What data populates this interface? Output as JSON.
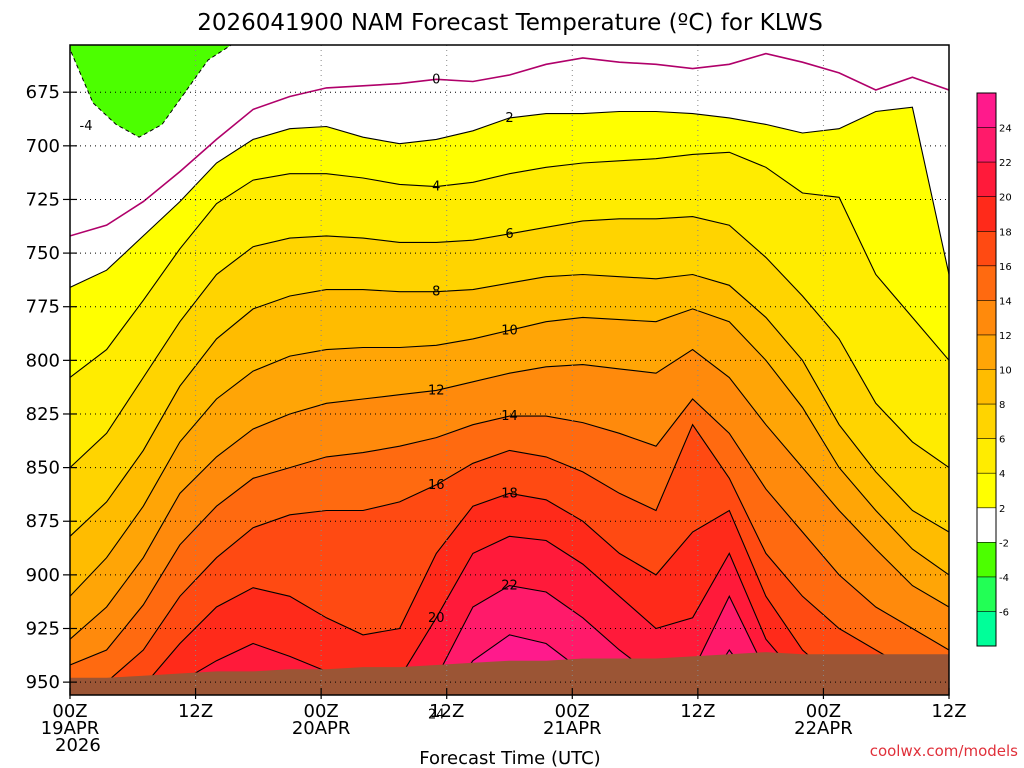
{
  "colors": {
    "ground": "#9b5535",
    "freezing_line": "#b0006a",
    "contour": "#000000",
    "fill_levels": [
      {
        "min": 24,
        "color": "#ff1a8c"
      },
      {
        "min": 22,
        "color": "#ff1a6a"
      },
      {
        "min": 20,
        "color": "#ff1a3a"
      },
      {
        "min": 18,
        "color": "#ff2a1a"
      },
      {
        "min": 16,
        "color": "#ff4a12"
      },
      {
        "min": 14,
        "color": "#ff6a10"
      },
      {
        "min": 12,
        "color": "#ff8a0c"
      },
      {
        "min": 10,
        "color": "#ffa506"
      },
      {
        "min": 8,
        "color": "#ffbc00"
      },
      {
        "min": 6,
        "color": "#ffd400"
      },
      {
        "min": 4,
        "color": "#ffec00"
      },
      {
        "min": 2,
        "color": "#ffff00"
      },
      {
        "min": -2,
        "color": "#ffffff"
      },
      {
        "min": -4,
        "color": "#4cff00"
      },
      {
        "min": -6,
        "color": "#22ff55"
      },
      {
        "min": -99,
        "color": "#00ff99"
      }
    ]
  },
  "chart_data": {
    "type": "heatmap",
    "title": "2026041900 NAM Forecast Temperature (ºC) for KLWS",
    "xlabel": "Forecast Time (UTC)",
    "ylabel": "",
    "credit": "coolwx.com/models",
    "x_ticks": [
      {
        "hour": 0,
        "lines": [
          "00Z",
          "19APR",
          "2026"
        ]
      },
      {
        "hour": 12,
        "lines": [
          "12Z"
        ]
      },
      {
        "hour": 24,
        "lines": [
          "00Z",
          "20APR"
        ]
      },
      {
        "hour": 36,
        "lines": [
          "12Z"
        ]
      },
      {
        "hour": 48,
        "lines": [
          "00Z",
          "21APR"
        ]
      },
      {
        "hour": 60,
        "lines": [
          "12Z"
        ]
      },
      {
        "hour": 72,
        "lines": [
          "00Z",
          "22APR"
        ]
      },
      {
        "hour": 84,
        "lines": [
          "12Z"
        ]
      }
    ],
    "xlim": [
      0,
      84
    ],
    "y_ticks": [
      675,
      700,
      725,
      750,
      775,
      800,
      825,
      850,
      875,
      900,
      925,
      950
    ],
    "ylim": [
      653,
      956
    ],
    "y_inverted": true,
    "grid": true,
    "colorbar": {
      "labels": [
        24,
        22,
        20,
        18,
        16,
        14,
        12,
        10,
        8,
        6,
        4,
        2,
        -2,
        -4,
        -6
      ],
      "placement": "right"
    },
    "series": [
      {
        "name": "0",
        "level": 0,
        "pressure": [
          742,
          737,
          726,
          712,
          697,
          683,
          677,
          673,
          672,
          671,
          669,
          670,
          667,
          662,
          659,
          661,
          662,
          664,
          662,
          657,
          661,
          666,
          674,
          668,
          674
        ]
      },
      {
        "name": "2",
        "level": 2,
        "pressure": [
          766,
          758,
          742,
          726,
          708,
          697,
          692,
          691,
          696,
          699,
          697,
          693,
          687,
          685,
          685,
          684,
          684,
          685,
          687,
          690,
          694,
          692,
          684,
          682,
          760
        ]
      },
      {
        "name": "4",
        "level": 4,
        "pressure": [
          808,
          795,
          772,
          748,
          727,
          716,
          713,
          713,
          715,
          718,
          719,
          717,
          713,
          710,
          708,
          707,
          706,
          704,
          703,
          710,
          722,
          724,
          760,
          780,
          800
        ]
      },
      {
        "name": "6",
        "level": 6,
        "pressure": [
          850,
          834,
          808,
          782,
          760,
          747,
          743,
          742,
          743,
          745,
          745,
          744,
          741,
          738,
          735,
          734,
          734,
          733,
          737,
          752,
          770,
          790,
          820,
          838,
          850
        ]
      },
      {
        "name": "8",
        "level": 8,
        "pressure": [
          882,
          866,
          842,
          812,
          790,
          776,
          770,
          767,
          767,
          768,
          768,
          767,
          764,
          761,
          760,
          761,
          762,
          760,
          765,
          780,
          800,
          830,
          852,
          870,
          880
        ]
      },
      {
        "name": "10",
        "level": 10,
        "pressure": [
          910,
          892,
          868,
          838,
          818,
          805,
          798,
          795,
          794,
          794,
          793,
          790,
          786,
          782,
          780,
          781,
          782,
          776,
          782,
          800,
          822,
          850,
          870,
          888,
          900
        ]
      },
      {
        "name": "12",
        "level": 12,
        "pressure": [
          930,
          915,
          892,
          862,
          845,
          832,
          825,
          820,
          818,
          816,
          814,
          810,
          806,
          803,
          802,
          804,
          806,
          795,
          808,
          830,
          850,
          870,
          888,
          905,
          915
        ]
      },
      {
        "name": "14",
        "level": 14,
        "pressure": [
          942,
          935,
          914,
          886,
          868,
          855,
          850,
          845,
          843,
          840,
          836,
          830,
          826,
          826,
          829,
          834,
          840,
          818,
          834,
          860,
          880,
          900,
          915,
          925,
          935
        ]
      },
      {
        "name": "16",
        "level": 16,
        "pressure": [
          955,
          950,
          935,
          910,
          892,
          878,
          872,
          870,
          870,
          866,
          858,
          848,
          842,
          845,
          852,
          862,
          870,
          830,
          855,
          890,
          910,
          925,
          935,
          945,
          950
        ]
      },
      {
        "name": "18",
        "level": 18,
        "pressure": [
          960,
          958,
          952,
          932,
          915,
          906,
          910,
          920,
          928,
          925,
          890,
          868,
          862,
          865,
          875,
          890,
          900,
          880,
          870,
          910,
          935,
          950,
          955,
          958,
          960
        ]
      },
      {
        "name": "20",
        "level": 20,
        "pressure": [
          965,
          963,
          960,
          950,
          940,
          932,
          938,
          945,
          950,
          948,
          920,
          890,
          882,
          884,
          895,
          910,
          925,
          920,
          890,
          930,
          950,
          960,
          962,
          963,
          965
        ]
      },
      {
        "name": "22",
        "level": 22,
        "pressure": [
          970,
          968,
          966,
          962,
          958,
          955,
          958,
          962,
          965,
          963,
          948,
          915,
          905,
          908,
          920,
          935,
          948,
          945,
          910,
          945,
          962,
          966,
          968,
          969,
          970
        ]
      },
      {
        "name": "24",
        "level": 24,
        "pressure": [
          975,
          973,
          971,
          969,
          967,
          965,
          967,
          970,
          972,
          971,
          965,
          940,
          928,
          932,
          945,
          958,
          965,
          962,
          935,
          958,
          970,
          972,
          973,
          974,
          975
        ]
      }
    ],
    "cold_region": {
      "name": "-4",
      "level": -4,
      "pressure": [
        655,
        680,
        690,
        696,
        690,
        675,
        660,
        653
      ]
    },
    "ground_pressure": [
      948,
      948,
      947,
      946,
      945,
      945,
      944,
      944,
      943,
      943,
      942,
      941,
      940,
      940,
      939,
      939,
      939,
      938,
      937,
      936,
      937,
      937,
      937,
      937,
      937
    ],
    "x_hours_step": 3.5
  }
}
